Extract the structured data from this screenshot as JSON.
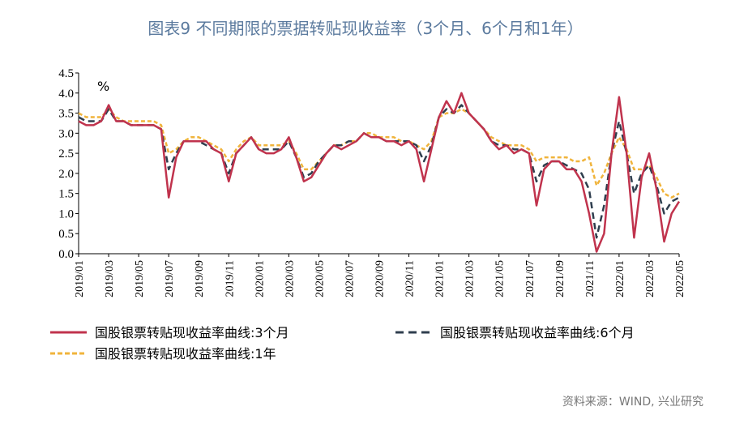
{
  "chart_data": {
    "type": "line",
    "title": "图表9 不同期限的票据转贴现收益率（3个月、6个月和1年）",
    "unit": "%",
    "source": "资料来源：WIND, 兴业研究",
    "categories": [
      "2019/01",
      null,
      null,
      null,
      "2019/03",
      null,
      null,
      null,
      "2019/05",
      null,
      null,
      null,
      "2019/07",
      null,
      null,
      null,
      "2019/09",
      null,
      null,
      null,
      "2019/11",
      null,
      null,
      null,
      "2020/01",
      null,
      null,
      null,
      "2020/03",
      null,
      null,
      null,
      "2020/05",
      null,
      null,
      null,
      "2020/07",
      null,
      null,
      null,
      "2020/09",
      null,
      null,
      null,
      "2020/11",
      null,
      null,
      null,
      "2021/01",
      null,
      null,
      null,
      "2021/03",
      null,
      null,
      null,
      "2021/05",
      null,
      null,
      null,
      "2021/07",
      null,
      null,
      null,
      "2021/09",
      null,
      null,
      null,
      "2021/11",
      null,
      null,
      null,
      "2022/01",
      null,
      null,
      null,
      "2022/03",
      null,
      null,
      null,
      "2022/05"
    ],
    "series": [
      {
        "name": "国股银票转贴现收益率曲线:3个月",
        "color": "#c0334d",
        "dash": false,
        "values": [
          3.3,
          3.2,
          3.2,
          3.3,
          3.7,
          3.3,
          3.3,
          3.2,
          3.2,
          3.2,
          3.2,
          3.1,
          1.4,
          2.4,
          2.8,
          2.8,
          2.8,
          2.8,
          2.6,
          2.5,
          1.8,
          2.5,
          2.7,
          2.9,
          2.6,
          2.5,
          2.5,
          2.6,
          2.9,
          2.4,
          1.8,
          1.9,
          2.2,
          2.5,
          2.7,
          2.6,
          2.7,
          2.8,
          3.0,
          2.9,
          2.9,
          2.8,
          2.8,
          2.7,
          2.8,
          2.6,
          1.8,
          2.6,
          3.4,
          3.8,
          3.5,
          4.0,
          3.5,
          3.3,
          3.1,
          2.8,
          2.6,
          2.7,
          2.5,
          2.6,
          2.5,
          1.2,
          2.1,
          2.3,
          2.3,
          2.1,
          2.1,
          1.8,
          1.0,
          0.05,
          0.5,
          2.5,
          3.9,
          2.5,
          0.4,
          1.9,
          2.5,
          1.6,
          0.3,
          1.0,
          1.3
        ]
      },
      {
        "name": "国股银票转贴现收益率曲线:6个月",
        "color": "#2f3e4e",
        "dash": true,
        "values": [
          3.4,
          3.3,
          3.3,
          3.3,
          3.6,
          3.3,
          3.3,
          3.2,
          3.2,
          3.2,
          3.2,
          3.1,
          2.1,
          2.5,
          2.8,
          2.8,
          2.8,
          2.7,
          2.6,
          2.5,
          2.0,
          2.5,
          2.7,
          2.9,
          2.6,
          2.6,
          2.6,
          2.6,
          2.8,
          2.4,
          1.9,
          2.0,
          2.3,
          2.5,
          2.7,
          2.7,
          2.8,
          2.8,
          3.0,
          2.9,
          2.9,
          2.8,
          2.8,
          2.8,
          2.8,
          2.7,
          2.3,
          2.7,
          3.4,
          3.6,
          3.5,
          3.7,
          3.5,
          3.3,
          3.1,
          2.8,
          2.7,
          2.7,
          2.6,
          2.6,
          2.5,
          1.8,
          2.2,
          2.3,
          2.3,
          2.2,
          2.1,
          2.0,
          1.6,
          0.4,
          1.2,
          2.5,
          3.3,
          2.5,
          1.5,
          2.0,
          2.2,
          1.7,
          1.0,
          1.3,
          1.4
        ]
      },
      {
        "name": "国股银票转贴现收益率曲线:1年",
        "color": "#f0b43c",
        "dash": true,
        "values": [
          3.5,
          3.4,
          3.4,
          3.4,
          3.6,
          3.4,
          3.3,
          3.3,
          3.3,
          3.3,
          3.3,
          3.2,
          2.5,
          2.6,
          2.8,
          2.9,
          2.9,
          2.8,
          2.7,
          2.6,
          2.3,
          2.6,
          2.8,
          2.9,
          2.7,
          2.7,
          2.7,
          2.7,
          2.8,
          2.5,
          2.1,
          2.1,
          2.3,
          2.5,
          2.7,
          2.7,
          2.8,
          2.8,
          3.0,
          3.0,
          2.9,
          2.9,
          2.9,
          2.8,
          2.8,
          2.7,
          2.6,
          2.8,
          3.4,
          3.5,
          3.5,
          3.6,
          3.5,
          3.3,
          3.1,
          2.9,
          2.8,
          2.7,
          2.7,
          2.7,
          2.6,
          2.3,
          2.4,
          2.4,
          2.4,
          2.4,
          2.3,
          2.3,
          2.4,
          1.7,
          2.0,
          2.5,
          2.9,
          2.6,
          2.1,
          2.1,
          2.2,
          1.9,
          1.5,
          1.4,
          1.5
        ]
      }
    ],
    "ylim": [
      0,
      4.5
    ],
    "yticks": [
      {
        "value": 0,
        "label": "0.0"
      },
      {
        "value": 0.5,
        "label": "0.5"
      },
      {
        "value": 1,
        "label": "1.0"
      },
      {
        "value": 1.5,
        "label": "1.5"
      },
      {
        "value": 2,
        "label": "2.0"
      },
      {
        "value": 2.5,
        "label": "2.5"
      },
      {
        "value": 3,
        "label": "3.0"
      },
      {
        "value": 3.5,
        "label": "3.5"
      },
      {
        "value": 4,
        "label": "4.0"
      },
      {
        "value": 4.5,
        "label": "4.5"
      }
    ]
  }
}
